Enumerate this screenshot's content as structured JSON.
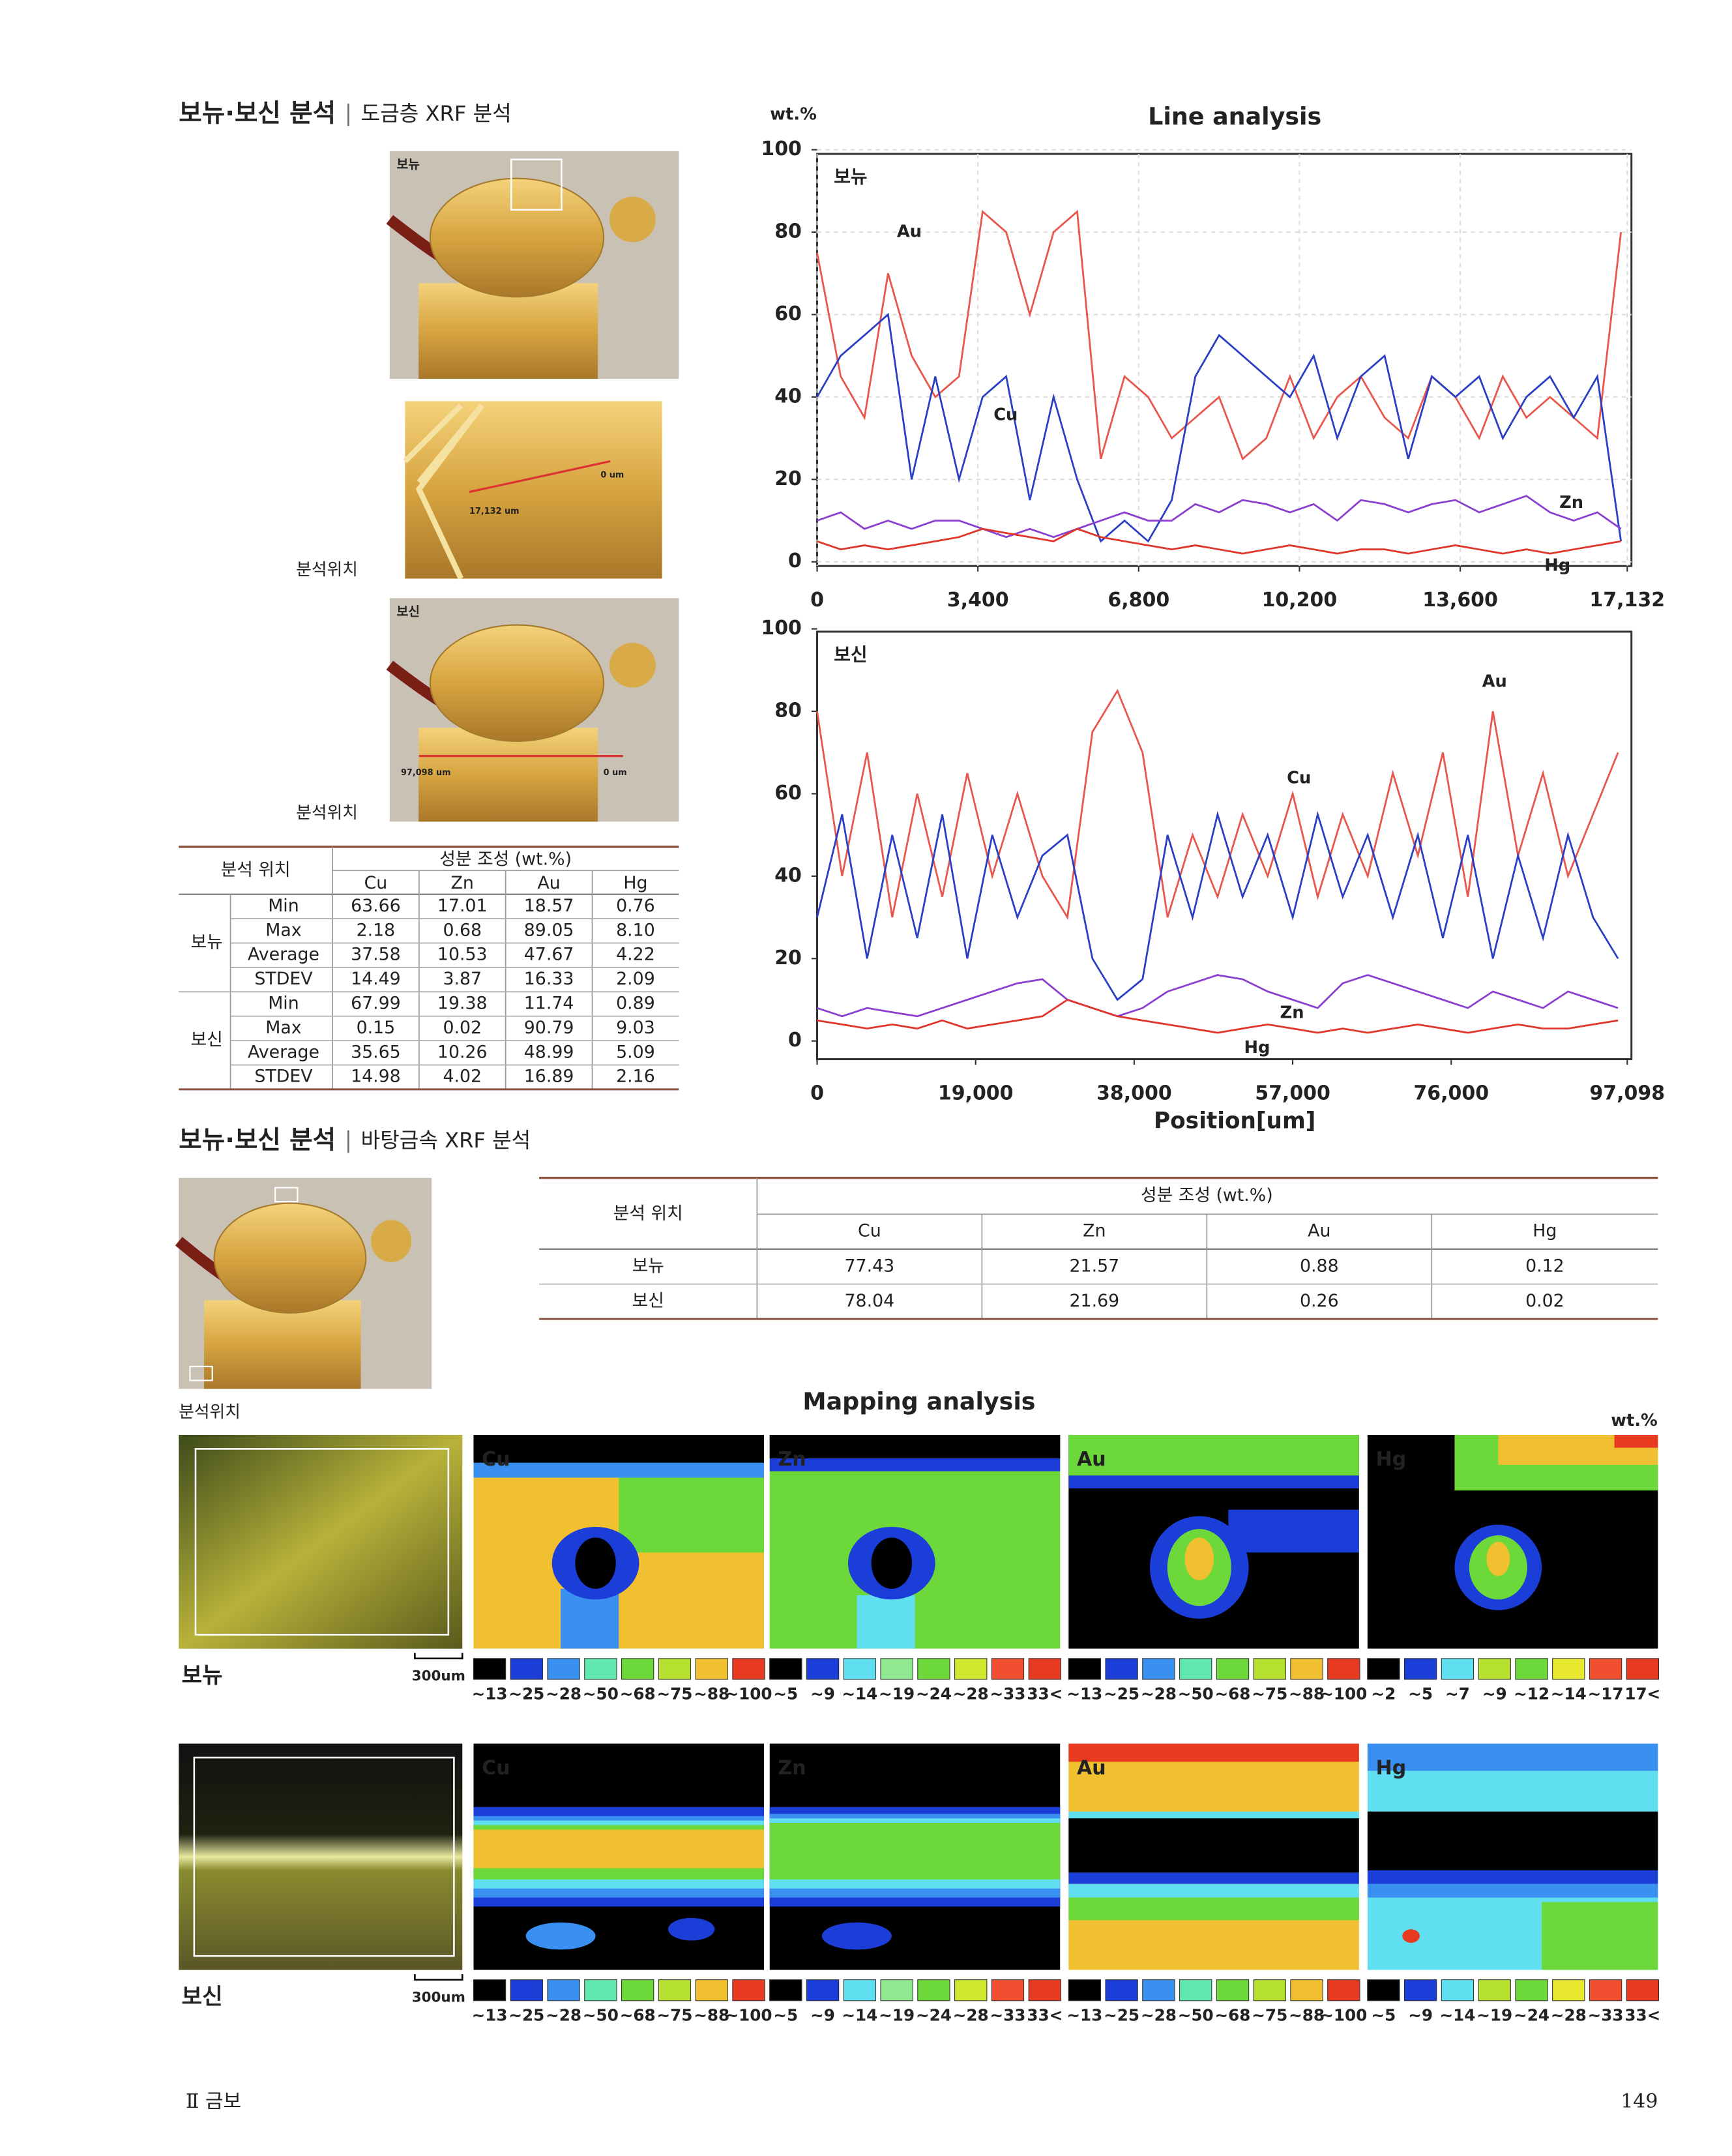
{
  "section1": {
    "title": "보뉴·보신 분석",
    "subtitle": "도금층 XRF 분석"
  },
  "photos": {
    "top_label": "보뉴",
    "bottom_label": "보신",
    "location_label": "분석위치",
    "line1_start": "0 um",
    "line1_end": "17,132 um",
    "line2_start": "0 um",
    "line2_end": "97,098 um"
  },
  "table1": {
    "location_header": "분석 위치",
    "composition_header": "성분 조성 (wt.%)",
    "columns": [
      "Cu",
      "Zn",
      "Au",
      "Hg"
    ],
    "groups": [
      {
        "name": "보뉴",
        "rows": [
          [
            "Min",
            "63.66",
            "17.01",
            "18.57",
            "0.76"
          ],
          [
            "Max",
            "2.18",
            "0.68",
            "89.05",
            "8.10"
          ],
          [
            "Average",
            "37.58",
            "10.53",
            "47.67",
            "4.22"
          ],
          [
            "STDEV",
            "14.49",
            "3.87",
            "16.33",
            "2.09"
          ]
        ]
      },
      {
        "name": "보신",
        "rows": [
          [
            "Min",
            "67.99",
            "19.38",
            "11.74",
            "0.89"
          ],
          [
            "Max",
            "0.15",
            "0.02",
            "90.79",
            "9.03"
          ],
          [
            "Average",
            "35.65",
            "10.26",
            "48.99",
            "5.09"
          ],
          [
            "STDEV",
            "14.98",
            "4.02",
            "16.89",
            "2.16"
          ]
        ]
      }
    ]
  },
  "chart_data": [
    {
      "type": "line",
      "title": "Line analysis",
      "y_label": "wt.%",
      "panel_label": "보뉴",
      "grid": true,
      "x": [
        0,
        500,
        1000,
        1500,
        2000,
        2500,
        3000,
        3500,
        4000,
        4500,
        5000,
        5500,
        6000,
        6500,
        7000,
        7500,
        8000,
        8500,
        9000,
        9500,
        10000,
        10500,
        11000,
        11500,
        12000,
        12500,
        13000,
        13500,
        14000,
        14500,
        15000,
        15500,
        16000,
        16500,
        17000
      ],
      "xlim": [
        0,
        17132
      ],
      "xticks": [
        0,
        {
          "value": 3400,
          "label": "3,400"
        },
        {
          "value": 6800,
          "label": "6,800"
        },
        {
          "value": 10200,
          "label": "10,200"
        },
        {
          "value": 13600,
          "label": "13,600"
        },
        {
          "value": 17132,
          "label": "17,132"
        }
      ],
      "ylim": [
        0,
        100
      ],
      "yticks": [
        0,
        20,
        40,
        60,
        80,
        100
      ],
      "series": [
        {
          "name": "Au",
          "color": "#e8564c",
          "values": [
            75,
            45,
            35,
            70,
            50,
            40,
            45,
            85,
            80,
            60,
            80,
            85,
            25,
            45,
            40,
            30,
            35,
            40,
            25,
            30,
            45,
            30,
            40,
            45,
            35,
            30,
            45,
            40,
            30,
            45,
            35,
            40,
            35,
            30,
            80
          ]
        },
        {
          "name": "Cu",
          "color": "#2a3ec6",
          "values": [
            40,
            50,
            55,
            60,
            20,
            45,
            20,
            40,
            45,
            15,
            40,
            20,
            5,
            10,
            5,
            15,
            45,
            55,
            50,
            45,
            40,
            50,
            30,
            45,
            50,
            25,
            45,
            40,
            45,
            30,
            40,
            45,
            35,
            45,
            5
          ]
        },
        {
          "name": "Zn",
          "color": "#8b3fcf",
          "values": [
            10,
            12,
            8,
            10,
            8,
            10,
            10,
            8,
            6,
            8,
            6,
            8,
            10,
            12,
            10,
            10,
            14,
            12,
            15,
            14,
            12,
            14,
            10,
            15,
            14,
            12,
            14,
            15,
            12,
            14,
            16,
            12,
            10,
            12,
            8
          ]
        },
        {
          "name": "Hg",
          "color": "#e0352a",
          "values": [
            5,
            3,
            4,
            3,
            4,
            5,
            6,
            8,
            7,
            6,
            5,
            8,
            6,
            5,
            4,
            3,
            4,
            3,
            2,
            3,
            4,
            3,
            2,
            3,
            3,
            2,
            3,
            4,
            3,
            2,
            3,
            2,
            3,
            4,
            5
          ]
        }
      ]
    },
    {
      "type": "line",
      "panel_label": "보신",
      "x_label": "Position[um]",
      "grid": false,
      "x": [
        0,
        3000,
        6000,
        9000,
        12000,
        15000,
        18000,
        21000,
        24000,
        27000,
        30000,
        33000,
        36000,
        39000,
        42000,
        45000,
        48000,
        51000,
        54000,
        57000,
        60000,
        63000,
        66000,
        69000,
        72000,
        75000,
        78000,
        81000,
        84000,
        87000,
        90000,
        93000,
        96000
      ],
      "xlim": [
        0,
        97098
      ],
      "xticks": [
        0,
        {
          "value": 19000,
          "label": "19,000"
        },
        {
          "value": 38000,
          "label": "38,000"
        },
        {
          "value": 57000,
          "label": "57,000"
        },
        {
          "value": 76000,
          "label": "76,000"
        },
        {
          "value": 97098,
          "label": "97,098"
        }
      ],
      "ylim": [
        0,
        100
      ],
      "yticks": [
        0,
        20,
        40,
        60,
        80,
        100
      ],
      "series": [
        {
          "name": "Au",
          "color": "#e8564c",
          "values": [
            80,
            40,
            70,
            30,
            60,
            35,
            65,
            40,
            60,
            40,
            30,
            75,
            85,
            70,
            30,
            50,
            35,
            55,
            40,
            60,
            35,
            55,
            40,
            65,
            45,
            70,
            35,
            80,
            45,
            65,
            40,
            55,
            70
          ]
        },
        {
          "name": "Cu",
          "color": "#2a3ec6",
          "values": [
            30,
            55,
            20,
            50,
            25,
            55,
            20,
            50,
            30,
            45,
            50,
            20,
            10,
            15,
            50,
            30,
            55,
            35,
            50,
            30,
            55,
            35,
            50,
            30,
            50,
            25,
            50,
            20,
            45,
            25,
            50,
            30,
            20
          ]
        },
        {
          "name": "Zn",
          "color": "#8b3fcf",
          "values": [
            8,
            6,
            8,
            7,
            6,
            8,
            10,
            12,
            14,
            15,
            10,
            8,
            6,
            8,
            12,
            14,
            16,
            15,
            12,
            10,
            8,
            14,
            16,
            14,
            12,
            10,
            8,
            12,
            10,
            8,
            12,
            10,
            8
          ]
        },
        {
          "name": "Hg",
          "color": "#e0352a",
          "values": [
            5,
            4,
            3,
            4,
            3,
            5,
            3,
            4,
            5,
            6,
            10,
            8,
            6,
            5,
            4,
            3,
            2,
            3,
            4,
            3,
            2,
            3,
            2,
            3,
            4,
            3,
            2,
            3,
            4,
            3,
            3,
            4,
            5
          ]
        }
      ]
    }
  ],
  "section2": {
    "title": "보뉴·보신 분석",
    "subtitle": "바탕금속 XRF 분석"
  },
  "table2": {
    "location_header": "분석 위치",
    "composition_header": "성분 조성 (wt.%)",
    "columns": [
      "Cu",
      "Zn",
      "Au",
      "Hg"
    ],
    "rows": [
      [
        "보뉴",
        "77.43",
        "21.57",
        "0.88",
        "0.12"
      ],
      [
        "보신",
        "78.04",
        "21.69",
        "0.26",
        "0.02"
      ]
    ]
  },
  "mapping": {
    "title": "Mapping analysis",
    "unit": "wt.%",
    "rows": [
      {
        "name": "보뉴",
        "scale": "300um",
        "panels": [
          "Cu",
          "Zn",
          "Au",
          "Hg"
        ],
        "legends": [
          [
            "~13",
            "~25",
            "~28",
            "~50",
            "~68",
            "~75",
            "~88",
            "~100"
          ],
          [
            "~5",
            "~9",
            "~14",
            "~19",
            "~24",
            "~28",
            "~33",
            "33<"
          ],
          [
            "~13",
            "~25",
            "~28",
            "~50",
            "~68",
            "~75",
            "~88",
            "~100"
          ],
          [
            "~2",
            "~5",
            "~7",
            "~9",
            "~12",
            "~14",
            "~17",
            "17<"
          ]
        ]
      },
      {
        "name": "보신",
        "scale": "300um",
        "panels": [
          "Cu",
          "Zn",
          "Au",
          "Hg"
        ],
        "legends": [
          [
            "~13",
            "~25",
            "~28",
            "~50",
            "~68",
            "~75",
            "~88",
            "~100"
          ],
          [
            "~5",
            "~9",
            "~14",
            "~19",
            "~24",
            "~28",
            "~33",
            "33<"
          ],
          [
            "~13",
            "~25",
            "~28",
            "~50",
            "~68",
            "~75",
            "~88",
            "~100"
          ],
          [
            "~5",
            "~9",
            "~14",
            "~19",
            "~24",
            "~28",
            "~33",
            "33<"
          ]
        ]
      }
    ]
  },
  "footer": {
    "section": "Ⅱ 금보",
    "page": "149"
  }
}
